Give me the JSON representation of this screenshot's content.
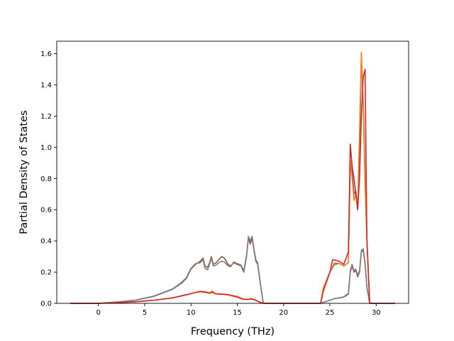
{
  "chart_data": {
    "type": "line",
    "title": "",
    "xlabel": "Frequency (THz)",
    "ylabel": "Partial Density of States",
    "xlim": [
      -4.5,
      33.5
    ],
    "ylim": [
      0,
      1.68
    ],
    "xticks": [
      0,
      5,
      10,
      15,
      20,
      25,
      30
    ],
    "yticks": [
      0.0,
      0.2,
      0.4,
      0.6,
      0.8,
      1.0,
      1.2,
      1.4,
      1.6
    ],
    "ytick_labels": [
      "0.0",
      "0.2",
      "0.4",
      "0.6",
      "0.8",
      "1.0",
      "1.2",
      "1.4",
      "1.6"
    ],
    "grid": false,
    "legend": "none",
    "series": [
      {
        "color": "#1f77b4",
        "points": [
          [
            -3,
            0
          ],
          [
            0,
            0
          ],
          [
            2,
            0.005
          ],
          [
            4,
            0.01
          ],
          [
            6,
            0.02
          ],
          [
            8,
            0.035
          ],
          [
            9.5,
            0.055
          ],
          [
            10.5,
            0.07
          ],
          [
            11,
            0.075
          ],
          [
            11.5,
            0.07
          ],
          [
            12,
            0.065
          ],
          [
            12.3,
            0.075
          ],
          [
            12.6,
            0.062
          ],
          [
            13,
            0.058
          ],
          [
            13.5,
            0.06
          ],
          [
            14,
            0.055
          ],
          [
            15,
            0.045
          ],
          [
            15.5,
            0.03
          ],
          [
            16,
            0.025
          ],
          [
            16.5,
            0.028
          ],
          [
            17,
            0.02
          ],
          [
            17.5,
            0.005
          ],
          [
            18,
            0
          ],
          [
            24,
            0
          ],
          [
            24.3,
            0.1
          ],
          [
            25,
            0.2
          ],
          [
            25.5,
            0.25
          ],
          [
            26,
            0.255
          ],
          [
            26.5,
            0.24
          ],
          [
            27,
            0.26
          ],
          [
            27.2,
            0.9
          ],
          [
            27.4,
            0.85
          ],
          [
            27.6,
            0.7
          ],
          [
            27.8,
            0.72
          ],
          [
            28,
            0.6
          ],
          [
            28.2,
            0.95
          ],
          [
            28.4,
            1.58
          ],
          [
            28.6,
            1.3
          ],
          [
            28.8,
            0.8
          ],
          [
            29,
            0.4
          ],
          [
            29.3,
            0
          ],
          [
            32,
            0
          ]
        ]
      },
      {
        "color": "#ff7f0e",
        "points": [
          [
            -3,
            0
          ],
          [
            0,
            0
          ],
          [
            2,
            0.005
          ],
          [
            4,
            0.01
          ],
          [
            6,
            0.02
          ],
          [
            8,
            0.035
          ],
          [
            9.5,
            0.055
          ],
          [
            10.5,
            0.07
          ],
          [
            11,
            0.078
          ],
          [
            11.5,
            0.07
          ],
          [
            12,
            0.068
          ],
          [
            12.3,
            0.08
          ],
          [
            12.6,
            0.062
          ],
          [
            13,
            0.058
          ],
          [
            13.5,
            0.06
          ],
          [
            14,
            0.055
          ],
          [
            15,
            0.045
          ],
          [
            15.5,
            0.03
          ],
          [
            16,
            0.025
          ],
          [
            16.5,
            0.028
          ],
          [
            17,
            0.02
          ],
          [
            17.5,
            0.005
          ],
          [
            18,
            0
          ],
          [
            24,
            0
          ],
          [
            24.3,
            0.1
          ],
          [
            25,
            0.2
          ],
          [
            25.5,
            0.26
          ],
          [
            26,
            0.255
          ],
          [
            26.5,
            0.24
          ],
          [
            27,
            0.26
          ],
          [
            27.2,
            0.92
          ],
          [
            27.4,
            0.8
          ],
          [
            27.6,
            0.66
          ],
          [
            27.8,
            0.7
          ],
          [
            28,
            0.62
          ],
          [
            28.2,
            1.1
          ],
          [
            28.4,
            1.61
          ],
          [
            28.6,
            1.25
          ],
          [
            28.8,
            0.75
          ],
          [
            29,
            0.4
          ],
          [
            29.3,
            0
          ],
          [
            32,
            0
          ]
        ]
      },
      {
        "color": "#8c564b",
        "points": [
          [
            -3,
            0
          ],
          [
            0,
            0
          ],
          [
            2,
            0.008
          ],
          [
            4,
            0.02
          ],
          [
            6,
            0.045
          ],
          [
            8,
            0.09
          ],
          [
            9,
            0.13
          ],
          [
            9.5,
            0.16
          ],
          [
            10,
            0.22
          ],
          [
            10.5,
            0.25
          ],
          [
            11,
            0.27
          ],
          [
            11.3,
            0.29
          ],
          [
            11.5,
            0.24
          ],
          [
            11.8,
            0.23
          ],
          [
            12,
            0.26
          ],
          [
            12.2,
            0.3
          ],
          [
            12.4,
            0.25
          ],
          [
            12.7,
            0.26
          ],
          [
            13,
            0.28
          ],
          [
            13.3,
            0.3
          ],
          [
            13.6,
            0.29
          ],
          [
            14,
            0.25
          ],
          [
            14.3,
            0.24
          ],
          [
            14.6,
            0.26
          ],
          [
            15,
            0.25
          ],
          [
            15.4,
            0.24
          ],
          [
            15.7,
            0.2
          ],
          [
            16,
            0.3
          ],
          [
            16.2,
            0.42
          ],
          [
            16.4,
            0.38
          ],
          [
            16.6,
            0.42
          ],
          [
            16.8,
            0.34
          ],
          [
            17,
            0.27
          ],
          [
            17.2,
            0.25
          ],
          [
            17.5,
            0.12
          ],
          [
            17.8,
            0
          ],
          [
            24,
            0
          ],
          [
            25,
            0.02
          ],
          [
            25.5,
            0.03
          ],
          [
            26,
            0.035
          ],
          [
            26.5,
            0.04
          ],
          [
            27,
            0.06
          ],
          [
            27.2,
            0.2
          ],
          [
            27.4,
            0.24
          ],
          [
            27.6,
            0.2
          ],
          [
            27.8,
            0.21
          ],
          [
            28,
            0.17
          ],
          [
            28.2,
            0.2
          ],
          [
            28.4,
            0.33
          ],
          [
            28.6,
            0.34
          ],
          [
            28.8,
            0.25
          ],
          [
            29,
            0.1
          ],
          [
            29.3,
            0
          ],
          [
            32,
            0
          ]
        ]
      },
      {
        "color": "#7f7f7f",
        "points": [
          [
            -3,
            0
          ],
          [
            0,
            0
          ],
          [
            2,
            0.009
          ],
          [
            4,
            0.021
          ],
          [
            6,
            0.047
          ],
          [
            8,
            0.092
          ],
          [
            9,
            0.135
          ],
          [
            9.5,
            0.165
          ],
          [
            10,
            0.225
          ],
          [
            10.5,
            0.255
          ],
          [
            11,
            0.26
          ],
          [
            11.3,
            0.28
          ],
          [
            11.5,
            0.225
          ],
          [
            11.8,
            0.215
          ],
          [
            12,
            0.25
          ],
          [
            12.2,
            0.29
          ],
          [
            12.4,
            0.24
          ],
          [
            12.7,
            0.245
          ],
          [
            13,
            0.26
          ],
          [
            13.3,
            0.27
          ],
          [
            13.6,
            0.265
          ],
          [
            14,
            0.24
          ],
          [
            14.3,
            0.235
          ],
          [
            14.6,
            0.265
          ],
          [
            15,
            0.255
          ],
          [
            15.4,
            0.245
          ],
          [
            15.7,
            0.21
          ],
          [
            16,
            0.31
          ],
          [
            16.2,
            0.43
          ],
          [
            16.4,
            0.4
          ],
          [
            16.6,
            0.43
          ],
          [
            16.8,
            0.35
          ],
          [
            17,
            0.28
          ],
          [
            17.2,
            0.26
          ],
          [
            17.5,
            0.13
          ],
          [
            17.8,
            0
          ],
          [
            24,
            0
          ],
          [
            25,
            0.02
          ],
          [
            25.5,
            0.03
          ],
          [
            26,
            0.035
          ],
          [
            26.5,
            0.042
          ],
          [
            27,
            0.065
          ],
          [
            27.2,
            0.21
          ],
          [
            27.4,
            0.25
          ],
          [
            27.6,
            0.21
          ],
          [
            27.8,
            0.22
          ],
          [
            28,
            0.18
          ],
          [
            28.2,
            0.21
          ],
          [
            28.4,
            0.34
          ],
          [
            28.6,
            0.35
          ],
          [
            28.8,
            0.26
          ],
          [
            29,
            0.1
          ],
          [
            29.3,
            0
          ],
          [
            32,
            0
          ]
        ]
      },
      {
        "color": "#d62728",
        "points": [
          [
            -3,
            0
          ],
          [
            0,
            0
          ],
          [
            2,
            0.005
          ],
          [
            4,
            0.01
          ],
          [
            6,
            0.02
          ],
          [
            8,
            0.035
          ],
          [
            9.5,
            0.055
          ],
          [
            10.5,
            0.07
          ],
          [
            11,
            0.075
          ],
          [
            11.5,
            0.075
          ],
          [
            12,
            0.065
          ],
          [
            12.3,
            0.07
          ],
          [
            12.6,
            0.062
          ],
          [
            13,
            0.06
          ],
          [
            13.5,
            0.058
          ],
          [
            14,
            0.055
          ],
          [
            15,
            0.04
          ],
          [
            15.5,
            0.028
          ],
          [
            16,
            0.025
          ],
          [
            16.5,
            0.03
          ],
          [
            17,
            0.02
          ],
          [
            17.5,
            0.005
          ],
          [
            18,
            0
          ],
          [
            24,
            0
          ],
          [
            24.3,
            0.08
          ],
          [
            25,
            0.2
          ],
          [
            25.3,
            0.28
          ],
          [
            26,
            0.27
          ],
          [
            26.5,
            0.25
          ],
          [
            27,
            0.33
          ],
          [
            27.2,
            1.02
          ],
          [
            27.4,
            0.88
          ],
          [
            27.6,
            0.8
          ],
          [
            27.8,
            0.7
          ],
          [
            28,
            0.6
          ],
          [
            28.2,
            0.8
          ],
          [
            28.4,
            1.2
          ],
          [
            28.6,
            1.45
          ],
          [
            28.8,
            1.5
          ],
          [
            29,
            0.4
          ],
          [
            29.3,
            0
          ],
          [
            32,
            0
          ]
        ]
      }
    ]
  }
}
